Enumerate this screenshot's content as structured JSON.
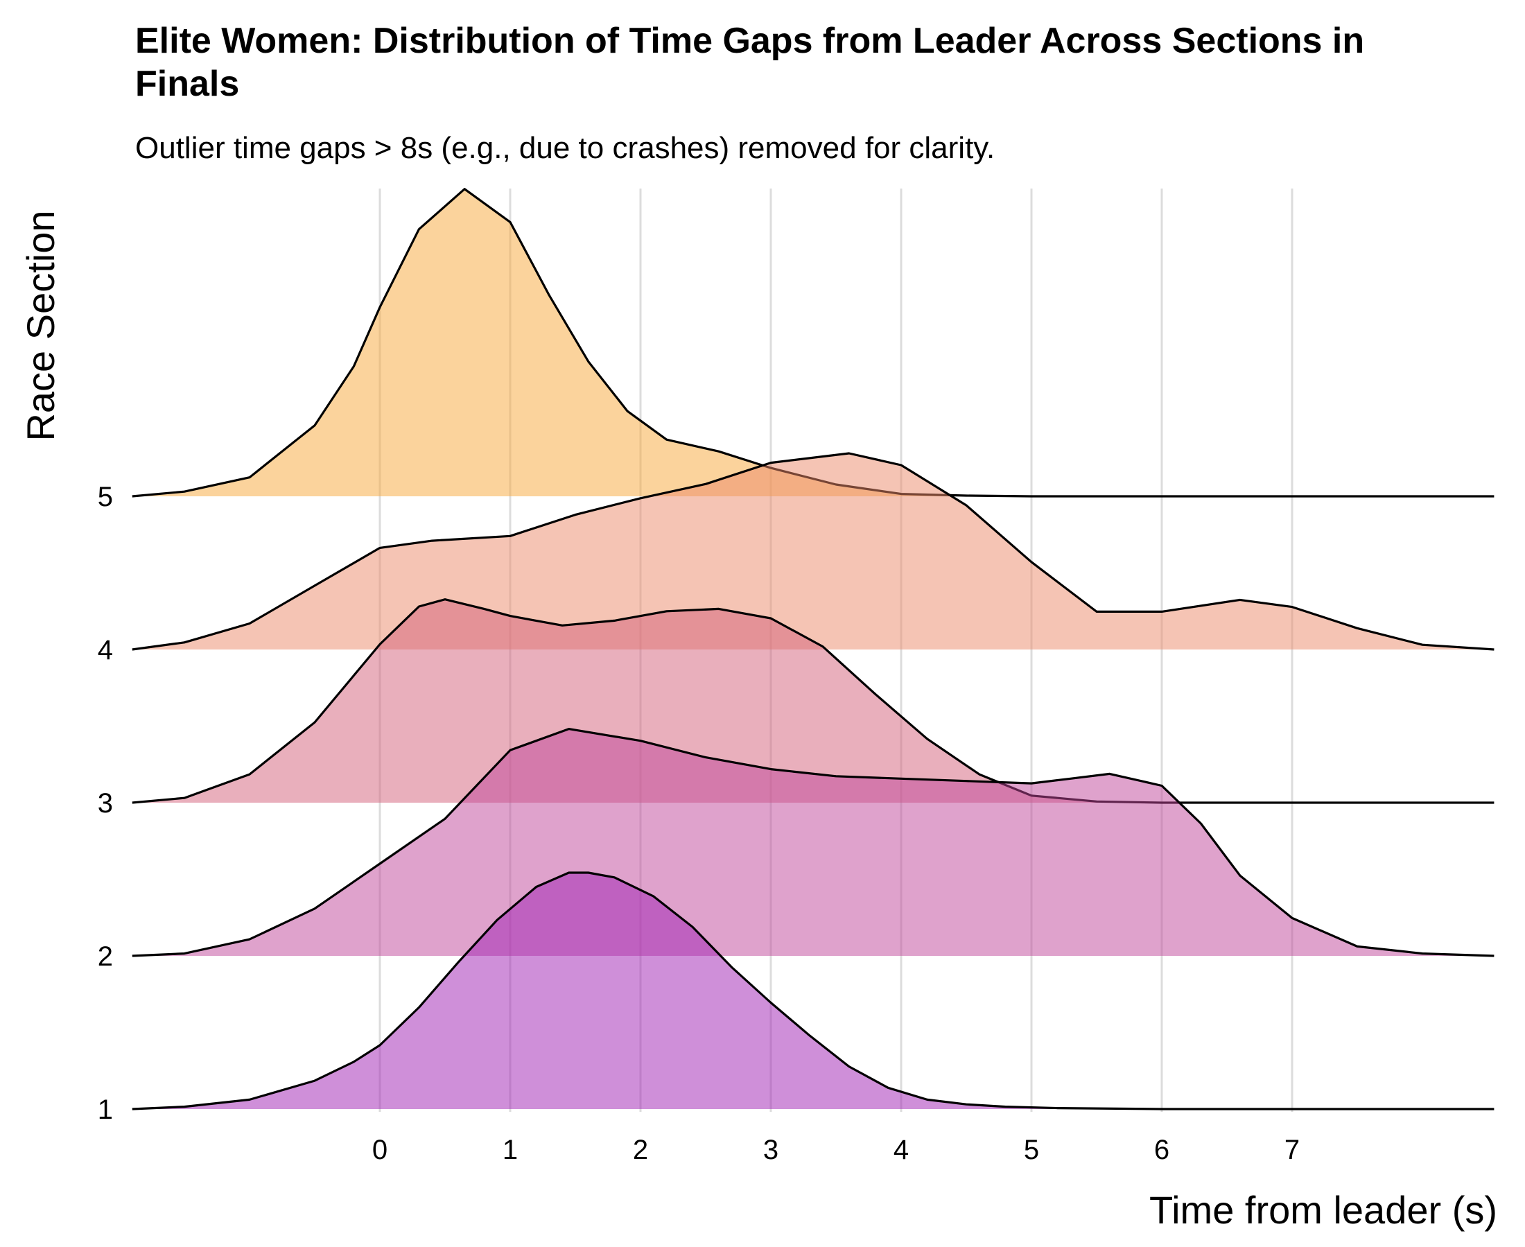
{
  "chart_data": {
    "type": "ridgeline",
    "title": "Elite Women: Distribution of Time Gaps from Leader Across Sections in Finals",
    "subtitle": "Outlier time gaps > 8s (e.g., due to crashes) removed for clarity.",
    "xlabel": "Time from leader (s)",
    "ylabel": "Race Section",
    "xlim": [
      -1.9,
      8.55
    ],
    "x_ticks": [
      0,
      1,
      2,
      3,
      4,
      5,
      6,
      7
    ],
    "grid": "vertical",
    "legend": "none",
    "categories": [
      "1",
      "2",
      "3",
      "4",
      "5"
    ],
    "series": [
      {
        "category": "1",
        "color": "#a020b4",
        "x": [
          -1.9,
          -1.5,
          -1.0,
          -0.5,
          -0.2,
          0.0,
          0.3,
          0.6,
          0.9,
          1.2,
          1.45,
          1.6,
          1.8,
          2.1,
          2.4,
          2.7,
          3.0,
          3.3,
          3.6,
          3.9,
          4.2,
          4.5,
          4.8,
          5.2,
          6.0,
          8.55
        ],
        "y": [
          0.0,
          0.01,
          0.04,
          0.12,
          0.2,
          0.27,
          0.43,
          0.62,
          0.8,
          0.94,
          1.0,
          1.0,
          0.98,
          0.9,
          0.77,
          0.6,
          0.45,
          0.31,
          0.18,
          0.09,
          0.04,
          0.02,
          0.01,
          0.004,
          0.0,
          0.0
        ]
      },
      {
        "category": "2",
        "color": "#c0459a",
        "x": [
          -1.9,
          -1.5,
          -1.0,
          -0.5,
          0.0,
          0.5,
          1.0,
          1.45,
          2.0,
          2.5,
          3.0,
          3.5,
          4.0,
          4.5,
          5.0,
          5.3,
          5.6,
          6.0,
          6.3,
          6.6,
          7.0,
          7.5,
          8.0,
          8.55
        ],
        "y": [
          0.0,
          0.01,
          0.07,
          0.2,
          0.39,
          0.58,
          0.87,
          0.96,
          0.91,
          0.84,
          0.79,
          0.76,
          0.75,
          0.74,
          0.73,
          0.75,
          0.77,
          0.72,
          0.56,
          0.34,
          0.16,
          0.04,
          0.01,
          0.0
        ]
      },
      {
        "category": "3",
        "color": "#d4607a",
        "x": [
          -1.9,
          -1.5,
          -1.0,
          -0.5,
          0.0,
          0.3,
          0.5,
          0.8,
          1.0,
          1.4,
          1.8,
          2.2,
          2.6,
          3.0,
          3.4,
          3.8,
          4.2,
          4.6,
          5.0,
          5.5,
          6.0,
          8.55
        ],
        "y": [
          0.0,
          0.02,
          0.12,
          0.34,
          0.67,
          0.83,
          0.86,
          0.82,
          0.79,
          0.75,
          0.77,
          0.81,
          0.82,
          0.78,
          0.66,
          0.46,
          0.27,
          0.12,
          0.03,
          0.005,
          0.0,
          0.0
        ]
      },
      {
        "category": "4",
        "color": "#ec8a6a",
        "x": [
          -1.9,
          -1.5,
          -1.0,
          -0.5,
          0.0,
          0.4,
          1.0,
          1.5,
          2.0,
          2.5,
          3.0,
          3.6,
          4.0,
          4.5,
          5.0,
          5.5,
          6.0,
          6.6,
          7.0,
          7.5,
          8.0,
          8.55
        ],
        "y": [
          0.0,
          0.03,
          0.11,
          0.27,
          0.43,
          0.46,
          0.48,
          0.57,
          0.64,
          0.7,
          0.79,
          0.83,
          0.78,
          0.61,
          0.37,
          0.16,
          0.16,
          0.21,
          0.18,
          0.09,
          0.02,
          0.0
        ]
      },
      {
        "category": "5",
        "color": "#f7a83a",
        "x": [
          -1.9,
          -1.5,
          -1.0,
          -0.5,
          -0.2,
          0.0,
          0.3,
          0.65,
          1.0,
          1.3,
          1.6,
          1.9,
          2.2,
          2.6,
          3.0,
          3.5,
          4.0,
          4.5,
          5.0,
          8.55
        ],
        "y": [
          0.0,
          0.02,
          0.08,
          0.3,
          0.55,
          0.8,
          1.13,
          1.3,
          1.16,
          0.85,
          0.57,
          0.36,
          0.24,
          0.19,
          0.12,
          0.05,
          0.01,
          0.003,
          0.0,
          0.0
        ]
      }
    ]
  }
}
